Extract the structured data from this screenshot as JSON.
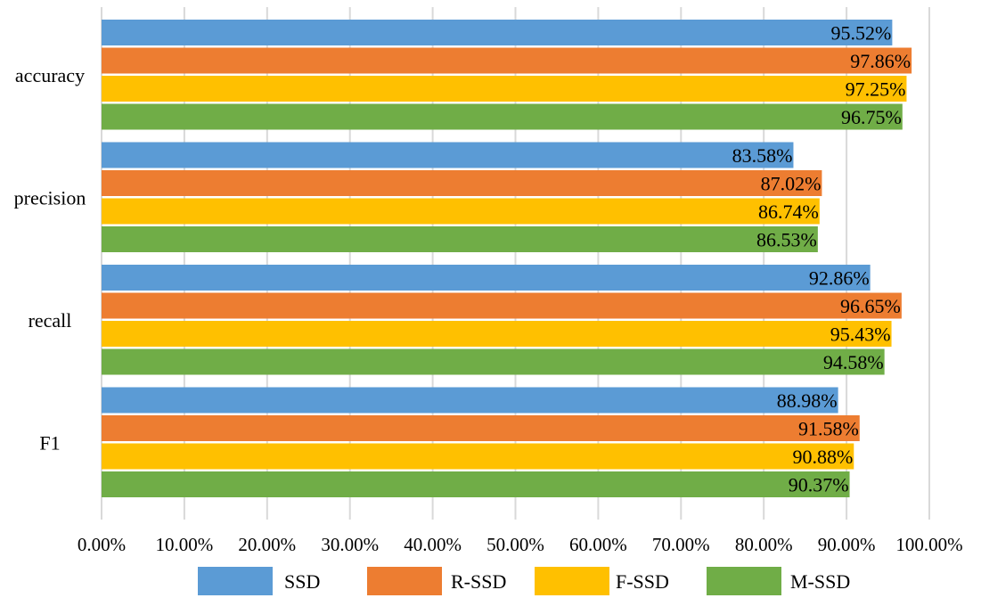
{
  "chart_data": {
    "type": "bar",
    "orientation": "horizontal",
    "categories": [
      "accuracy",
      "precision",
      "recall",
      "F1"
    ],
    "series": [
      {
        "name": "SSD",
        "color": "#5B9BD5",
        "values": [
          95.52,
          83.58,
          92.86,
          88.98
        ],
        "labels": [
          "95.52%",
          "83.58%",
          "92.86%",
          "88.98%"
        ]
      },
      {
        "name": "R-SSD",
        "color": "#ED7D31",
        "values": [
          97.86,
          87.02,
          96.65,
          91.58
        ],
        "labels": [
          "97.86%",
          "87.02%",
          "96.65%",
          "91.58%"
        ]
      },
      {
        "name": "F-SSD",
        "color": "#FFC000",
        "values": [
          97.25,
          86.74,
          95.43,
          90.88
        ],
        "labels": [
          "97.25%",
          "86.74%",
          "95.43%",
          "90.88%"
        ]
      },
      {
        "name": "M-SSD",
        "color": "#70AD47",
        "values": [
          96.75,
          86.53,
          94.58,
          90.37
        ],
        "labels": [
          "96.75%",
          "86.53%",
          "94.58%",
          "90.37%"
        ]
      }
    ],
    "x_ticks": [
      "0.00%",
      "10.00%",
      "20.00%",
      "30.00%",
      "40.00%",
      "50.00%",
      "60.00%",
      "70.00%",
      "80.00%",
      "90.00%",
      "100.00%"
    ],
    "xlim": [
      0,
      100
    ],
    "grid": "vertical",
    "legend_position": "bottom",
    "title": "",
    "xlabel": "",
    "ylabel": ""
  }
}
